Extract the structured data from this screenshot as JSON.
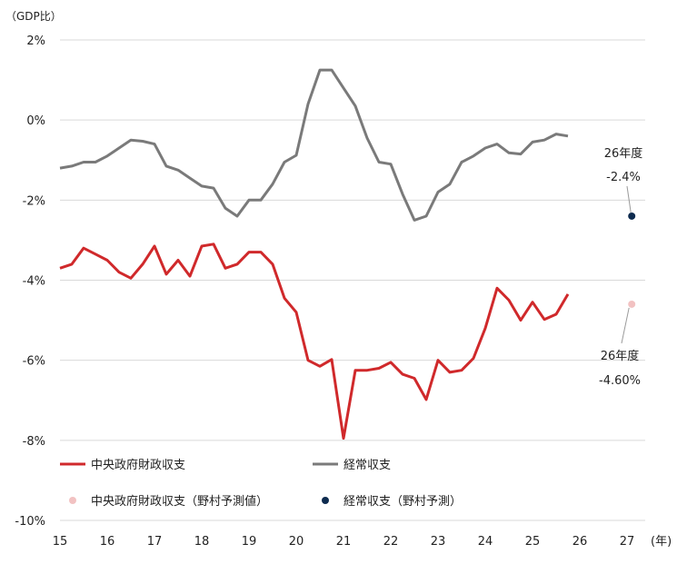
{
  "chart_data": {
    "type": "line",
    "y_unit_label": "（GDP比）",
    "x_unit_label": "(年)",
    "ylim": [
      -10,
      2
    ],
    "y_ticks": [
      2,
      0,
      -2,
      -4,
      -6,
      -8,
      -10
    ],
    "y_tick_labels": [
      "2%",
      "0%",
      "-2%",
      "-4%",
      "-6%",
      "-8%",
      "-10%"
    ],
    "xlim": [
      15,
      27
    ],
    "x_ticks": [
      15,
      16,
      17,
      18,
      19,
      20,
      21,
      22,
      23,
      24,
      25,
      26,
      27
    ],
    "x_tick_labels": [
      "15",
      "16",
      "17",
      "18",
      "19",
      "20",
      "21",
      "22",
      "23",
      "24",
      "25",
      "26",
      "27"
    ],
    "grid": true,
    "legend_position": "bottom-left",
    "series": [
      {
        "name": "中央政府財政収支",
        "color": "#d0292b",
        "x": [
          15.0,
          15.25,
          15.5,
          15.75,
          16.0,
          16.25,
          16.5,
          16.75,
          17.0,
          17.25,
          17.5,
          17.75,
          18.0,
          18.25,
          18.5,
          18.75,
          19.0,
          19.25,
          19.5,
          19.75,
          20.0,
          20.25,
          20.5,
          20.75,
          21.0,
          21.25,
          21.5,
          21.75,
          22.0,
          22.25,
          22.5,
          22.75,
          23.0,
          23.25,
          23.5,
          23.75,
          24.0,
          24.25,
          24.5,
          24.75,
          25.0,
          25.25,
          25.5,
          25.75
        ],
        "values": [
          -3.7,
          -3.6,
          -3.2,
          -3.35,
          -3.5,
          -3.8,
          -3.95,
          -3.6,
          -3.15,
          -3.85,
          -3.5,
          -3.9,
          -3.15,
          -3.1,
          -3.7,
          -3.6,
          -3.3,
          -3.3,
          -3.6,
          -4.45,
          -4.8,
          -6.0,
          -6.15,
          -5.98,
          -7.95,
          -6.25,
          -6.25,
          -6.2,
          -6.05,
          -6.35,
          -6.45,
          -6.98,
          -6.0,
          -6.3,
          -6.25,
          -5.95,
          -5.2,
          -4.2,
          -4.5,
          -5.0,
          -4.55,
          -4.98,
          -4.85,
          -4.35
        ]
      },
      {
        "name": "経常収支",
        "color": "#7a7a7a",
        "x": [
          15.0,
          15.25,
          15.5,
          15.75,
          16.0,
          16.25,
          16.5,
          16.75,
          17.0,
          17.25,
          17.5,
          17.75,
          18.0,
          18.25,
          18.5,
          18.75,
          19.0,
          19.25,
          19.5,
          19.75,
          20.0,
          20.25,
          20.5,
          20.75,
          21.0,
          21.25,
          21.5,
          21.75,
          22.0,
          22.25,
          22.5,
          22.75,
          23.0,
          23.25,
          23.5,
          23.75,
          24.0,
          24.25,
          24.5,
          24.75,
          25.0,
          25.25,
          25.5,
          25.75
        ],
        "values": [
          -1.2,
          -1.15,
          -1.05,
          -1.05,
          -0.9,
          -0.7,
          -0.5,
          -0.53,
          -0.6,
          -1.15,
          -1.25,
          -1.45,
          -1.65,
          -1.7,
          -2.2,
          -2.4,
          -2.0,
          -2.0,
          -1.6,
          -1.05,
          -0.88,
          0.4,
          1.25,
          1.25,
          0.8,
          0.35,
          -0.45,
          -1.05,
          -1.1,
          -1.85,
          -2.5,
          -2.4,
          -1.8,
          -1.6,
          -1.05,
          -0.9,
          -0.7,
          -0.6,
          -0.82,
          -0.85,
          -0.55,
          -0.5,
          -0.35,
          -0.4
        ]
      },
      {
        "name": "中央政府財政収支（野村予測値）",
        "color": "#f2c2c2",
        "type": "point",
        "x": [
          27.1
        ],
        "values": [
          -4.6
        ]
      },
      {
        "name": "経常収支（野村予測）",
        "color": "#0d2b4f",
        "type": "point",
        "x": [
          27.1
        ],
        "values": [
          -2.4
        ]
      }
    ],
    "annotations": [
      {
        "line1": "26年度",
        "line2": "-2.4%"
      },
      {
        "line1": "26年度",
        "line2": "-4.60%"
      }
    ]
  }
}
